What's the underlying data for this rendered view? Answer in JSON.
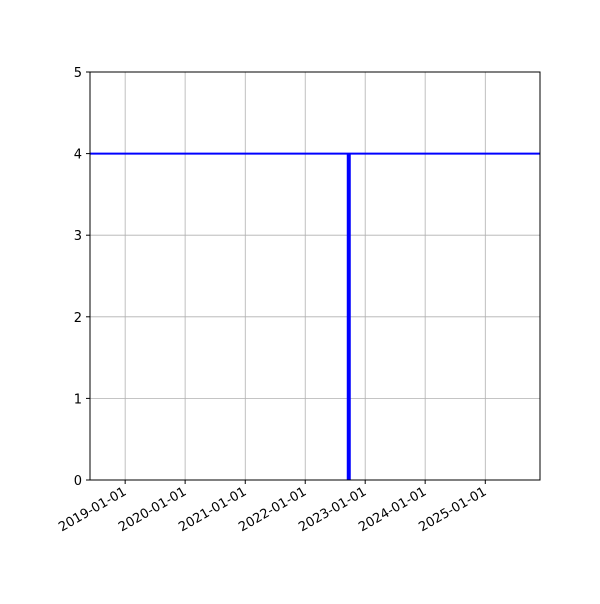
{
  "chart_data": {
    "type": "line",
    "title": "",
    "xlabel": "",
    "ylabel": "",
    "xlim": [
      "2018-06-01",
      "2025-11-30"
    ],
    "ylim": [
      0,
      5
    ],
    "x_ticks": [
      "2019-01-01",
      "2020-01-01",
      "2021-01-01",
      "2022-01-01",
      "2023-01-01",
      "2024-01-01",
      "2025-01-01"
    ],
    "y_ticks": [
      "0",
      "1",
      "2",
      "3",
      "4",
      "5"
    ],
    "grid": true,
    "series": [
      {
        "kind": "horizontal-line",
        "y": 4,
        "color": "#0000ff"
      },
      {
        "kind": "vertical-segment",
        "x": "2022-09-23",
        "y": [
          0,
          4
        ],
        "color": "#0000ff"
      }
    ]
  }
}
